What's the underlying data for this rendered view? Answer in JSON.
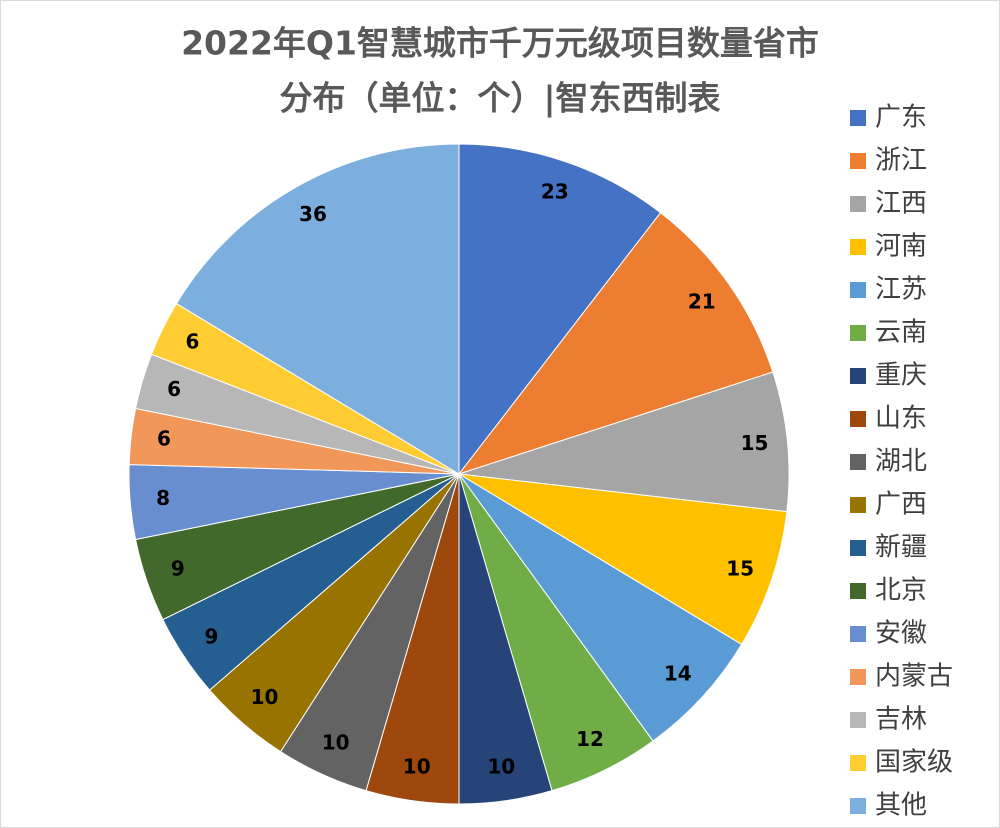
{
  "chart_data": {
    "type": "pie",
    "title": [
      "2022年Q1智慧城市千万元级项目数量省市",
      "分布（单位：个）|智东西制表"
    ],
    "categories": [
      "广东",
      "浙江",
      "江西",
      "河南",
      "江苏",
      "云南",
      "重庆",
      "山东",
      "湖北",
      "广西",
      "新疆",
      "北京",
      "安徽",
      "内蒙古",
      "吉林",
      "国家级",
      "其他"
    ],
    "values": [
      23,
      21,
      15,
      15,
      14,
      12,
      10,
      10,
      10,
      10,
      9,
      9,
      8,
      6,
      6,
      6,
      36
    ],
    "colors": [
      "#4472c4",
      "#ed7d31",
      "#a5a5a5",
      "#ffc000",
      "#5b9bd5",
      "#70ad47",
      "#264478",
      "#9e480e",
      "#636363",
      "#997300",
      "#255e91",
      "#43682b",
      "#698ed0",
      "#f1975a",
      "#b7b7b7",
      "#ffcd33",
      "#7cafdd"
    ],
    "legend": "right"
  }
}
